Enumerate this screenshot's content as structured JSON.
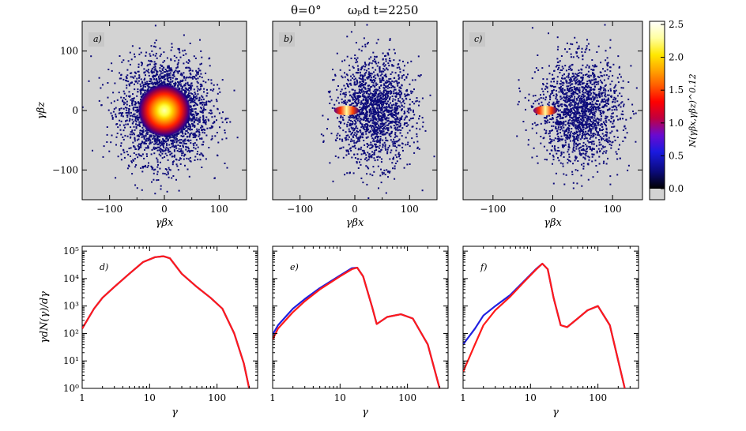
{
  "title": {
    "theta": "θ=0°",
    "time": "ωₚd t=2250"
  },
  "chart_data": [
    {
      "type": "heatmap",
      "panel": "a)",
      "xlabel": "γβx",
      "ylabel": "γβz",
      "xlim": [
        -150,
        150
      ],
      "ylim": [
        -150,
        150
      ],
      "xticks": [
        "−100",
        "0",
        "100"
      ],
      "yticks": [
        "100",
        "0",
        "−100"
      ],
      "blob_center": [
        0,
        0
      ],
      "blob_spread": 40
    },
    {
      "type": "heatmap",
      "panel": "b)",
      "xlabel": "γβx",
      "ylabel": "",
      "xlim": [
        -150,
        150
      ],
      "ylim": [
        -150,
        150
      ],
      "xticks": [
        "−100",
        "0",
        "100"
      ],
      "yticks": [],
      "beam_from": -35,
      "cloud_center": [
        35,
        0
      ],
      "cloud_spread": 40
    },
    {
      "type": "heatmap",
      "panel": "c)",
      "xlabel": "γβx",
      "ylabel": "",
      "xlim": [
        -150,
        150
      ],
      "ylim": [
        -150,
        150
      ],
      "xticks": [
        "−100",
        "0",
        "100"
      ],
      "yticks": [],
      "beam_from": -30,
      "cloud_center": [
        45,
        0
      ],
      "cloud_spread": 40
    }
  ],
  "colorbar": {
    "label": "N(γβx,γβz)^0.12",
    "ticks": [
      "2.5",
      "2.0",
      "1.5",
      "1.0",
      "0.5",
      "0.0"
    ],
    "range": [
      0,
      2.5
    ]
  },
  "spectra": [
    {
      "type": "line",
      "panel": "d)",
      "xlabel": "γ",
      "ylabel": "γdN(γ)/dγ",
      "xscale": "log",
      "yscale": "log",
      "xlim": [
        1,
        400
      ],
      "ylim": [
        1,
        150000
      ],
      "xticks": [
        "1",
        "10",
        "100"
      ],
      "yticks": [
        "10⁵",
        "10⁴",
        "10³",
        "10²",
        "10¹",
        "10⁰"
      ],
      "series": [
        {
          "name": "blue",
          "color": "#2020e0",
          "x": [
            1,
            1.5,
            2,
            3,
            5,
            8,
            12,
            16,
            20,
            30,
            50,
            80,
            120,
            180,
            250,
            300
          ],
          "y": [
            150,
            800,
            2000,
            5000,
            15000,
            40000,
            60000,
            65000,
            55000,
            15000,
            5000,
            2000,
            800,
            100,
            8,
            1
          ]
        },
        {
          "name": "red",
          "color": "#ff1a1a",
          "x": [
            1,
            1.5,
            2,
            3,
            5,
            8,
            12,
            16,
            20,
            30,
            50,
            80,
            120,
            180,
            250,
            300
          ],
          "y": [
            150,
            800,
            2000,
            5000,
            15000,
            40000,
            60000,
            65000,
            55000,
            15000,
            5000,
            2000,
            800,
            100,
            8,
            1
          ]
        }
      ]
    },
    {
      "type": "line",
      "panel": "e)",
      "xlabel": "γ",
      "ylabel": "",
      "xscale": "log",
      "yscale": "log",
      "xlim": [
        1,
        400
      ],
      "ylim": [
        1,
        150000
      ],
      "xticks": [
        "1",
        "10",
        "100"
      ],
      "yticks": [],
      "series": [
        {
          "name": "blue",
          "color": "#2020e0",
          "x": [
            1,
            1.2,
            2,
            3,
            5,
            10,
            15,
            18,
            22,
            30,
            35,
            50,
            80,
            120,
            200,
            300
          ],
          "y": [
            90,
            200,
            800,
            1800,
            4500,
            13000,
            24000,
            25000,
            12000,
            900,
            220,
            400,
            500,
            350,
            40,
            1
          ]
        },
        {
          "name": "red",
          "color": "#ff1a1a",
          "x": [
            1,
            1.2,
            2,
            3,
            5,
            10,
            15,
            18,
            22,
            30,
            35,
            50,
            80,
            120,
            200,
            300
          ],
          "y": [
            60,
            150,
            600,
            1500,
            4000,
            12000,
            22000,
            25000,
            12000,
            900,
            220,
            400,
            500,
            350,
            40,
            1
          ]
        }
      ]
    },
    {
      "type": "line",
      "panel": "f)",
      "xlabel": "γ",
      "ylabel": "",
      "xscale": "log",
      "yscale": "log",
      "xlim": [
        1,
        400
      ],
      "ylim": [
        1,
        150000
      ],
      "xticks": [
        "1",
        "10",
        "100"
      ],
      "yticks": [],
      "series": [
        {
          "name": "blue",
          "color": "#2020e0",
          "x": [
            1,
            1.5,
            2,
            3,
            5,
            8,
            12,
            15,
            18,
            22,
            28,
            35,
            50,
            70,
            100,
            150,
            250
          ],
          "y": [
            40,
            150,
            450,
            1000,
            2500,
            8000,
            22000,
            35000,
            22000,
            2000,
            200,
            170,
            350,
            700,
            1000,
            200,
            1
          ]
        },
        {
          "name": "red",
          "color": "#ff1a1a",
          "x": [
            1,
            1.5,
            2,
            3,
            5,
            8,
            12,
            15,
            18,
            22,
            28,
            35,
            50,
            70,
            100,
            150,
            250
          ],
          "y": [
            4,
            40,
            200,
            700,
            2200,
            7500,
            21000,
            35000,
            22000,
            2000,
            200,
            170,
            350,
            700,
            1000,
            200,
            1
          ]
        }
      ]
    }
  ]
}
